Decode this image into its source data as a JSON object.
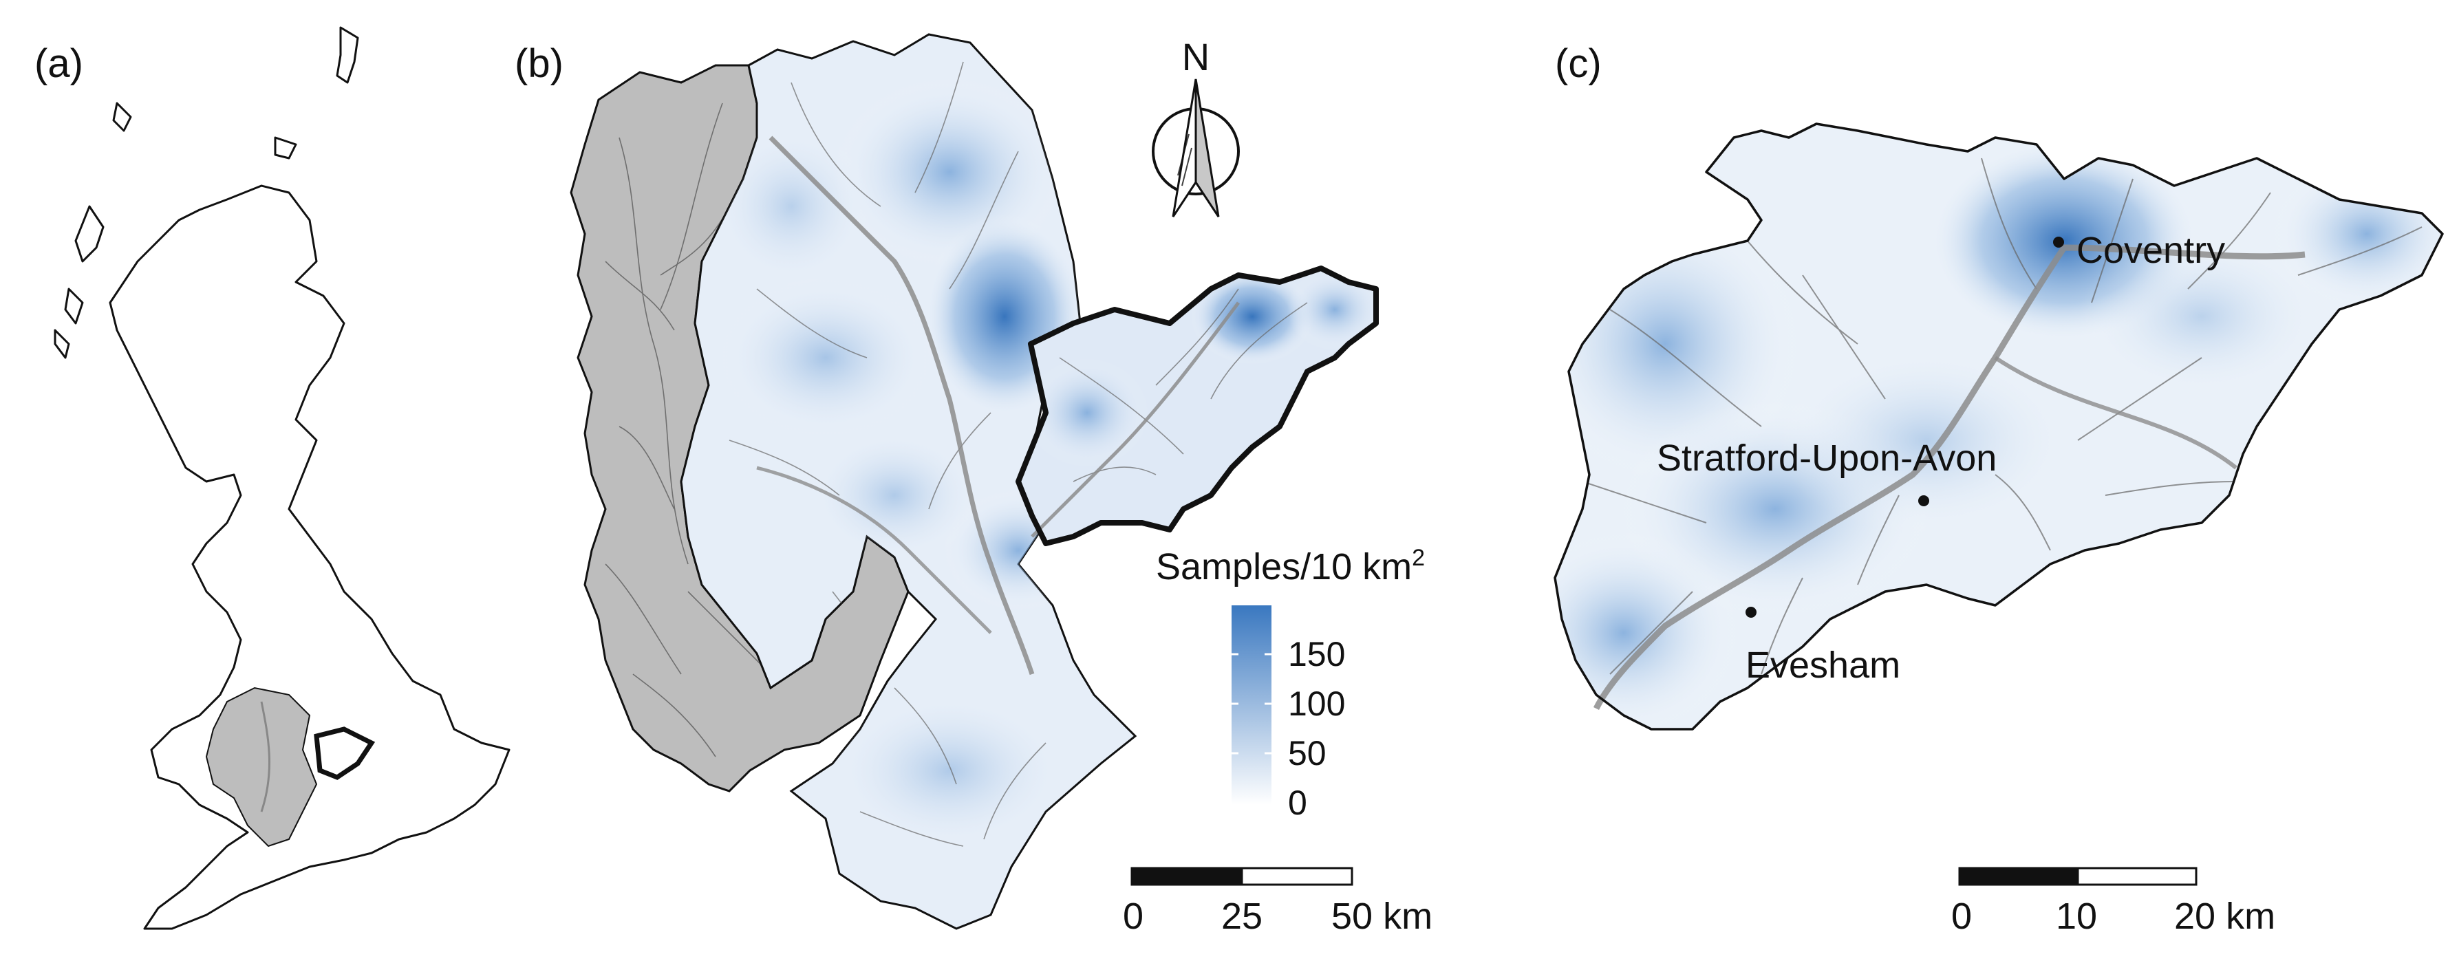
{
  "panels": {
    "a": {
      "label": "(a)"
    },
    "b": {
      "label": "(b)",
      "north_label": "N",
      "legend": {
        "title": "Samples/10 km",
        "title_superscript": "2",
        "ticks": [
          "150",
          "100",
          "50",
          "0"
        ],
        "color_low": "#ffffff",
        "color_high": "#3a78c0"
      },
      "scale_bar": {
        "labels": [
          "0",
          "25",
          "50 km"
        ]
      }
    },
    "c": {
      "label": "(c)",
      "places": [
        "Coventry",
        "Stratford-Upon-Avon",
        "Evesham"
      ],
      "scale_bar": {
        "labels": [
          "0",
          "10",
          "20 km"
        ]
      }
    }
  },
  "colors": {
    "outline": "#111111",
    "river": "#808080",
    "river_main": "#8c8c8c",
    "upstream_fill": "#bdbdbd",
    "density_mid": "#cfe0f2",
    "density_high": "#3a78c0"
  }
}
